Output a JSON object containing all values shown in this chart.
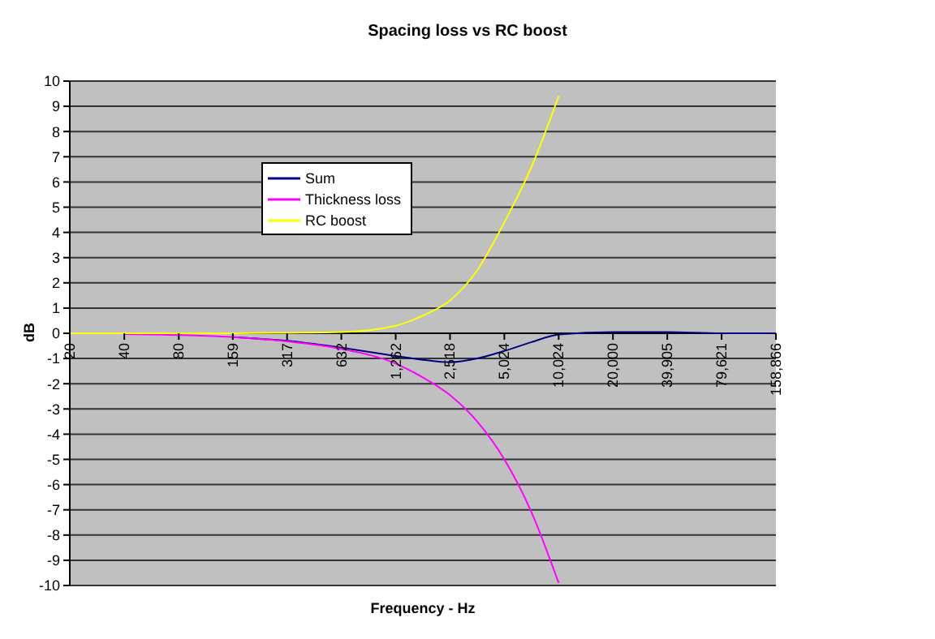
{
  "chart_data": {
    "type": "line",
    "title": "Spacing loss vs RC boost",
    "xlabel": "Frequency - Hz",
    "ylabel": "dB",
    "x": [
      20,
      40,
      80,
      159,
      317,
      632,
      1262,
      1780,
      2518,
      3560,
      5024,
      7100,
      10024,
      20000,
      39905,
      79621,
      158866
    ],
    "series": [
      {
        "name": "Sum",
        "color": "#000080",
        "values": [
          null,
          null,
          null,
          -0.15,
          -0.3,
          -0.57,
          -0.9,
          -1.05,
          -1.15,
          -1.0,
          -0.7,
          -0.35,
          -0.05,
          0.05,
          0.05,
          0,
          0
        ]
      },
      {
        "name": "Thickness loss",
        "color": "#ff00ff",
        "values": [
          null,
          -0.03,
          -0.07,
          -0.15,
          -0.32,
          -0.62,
          -1.2,
          -1.75,
          -2.45,
          -3.5,
          -5.0,
          -7.1,
          -9.9,
          null,
          null,
          null,
          null
        ]
      },
      {
        "name": "RC boost",
        "color": "#ffff00",
        "values": [
          0,
          0,
          0,
          0,
          0.02,
          0.05,
          0.3,
          0.7,
          1.3,
          2.5,
          4.4,
          6.6,
          9.4,
          null,
          null,
          null,
          null
        ]
      }
    ],
    "log": "x",
    "xlim": [
      20,
      158866
    ],
    "xticks": [
      20,
      40,
      80,
      159,
      317,
      632,
      {
        "value": 1262,
        "label": "1,262"
      },
      {
        "value": 2518,
        "label": "2,518"
      },
      {
        "value": 5024,
        "label": "5,024"
      },
      {
        "value": 10024,
        "label": "10,024"
      },
      {
        "value": 20000,
        "label": "20,000"
      },
      {
        "value": 39905,
        "label": "39,905"
      },
      {
        "value": 79621,
        "label": "79,621"
      },
      {
        "value": 158866,
        "label": "158,866"
      }
    ],
    "ylim": [
      -10,
      10
    ],
    "yticks": [
      -10,
      -9,
      -8,
      -7,
      -6,
      -5,
      -4,
      -3,
      -2,
      -1,
      0,
      1,
      2,
      3,
      4,
      5,
      6,
      7,
      8,
      9,
      10
    ],
    "grid": "y",
    "legend": "top left"
  }
}
